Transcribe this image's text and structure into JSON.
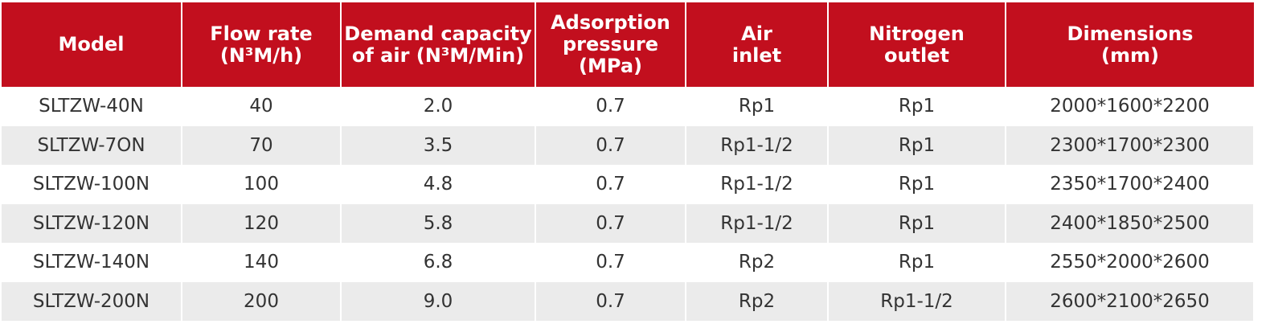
{
  "table": {
    "header": [
      [
        "Model"
      ],
      [
        "Flow rate",
        "(N³M/h)"
      ],
      [
        "Demand capacity",
        "of air (N³M/Min)"
      ],
      [
        "Adsorption",
        "pressure",
        "(MPa)"
      ],
      [
        "Air",
        "inlet"
      ],
      [
        "Nitrogen",
        "outlet"
      ],
      [
        "Dimensions",
        "(mm)"
      ]
    ],
    "rows": [
      [
        "SLTZW-40N",
        "40",
        "2.0",
        "0.7",
        "Rp1",
        "Rp1",
        "2000*1600*2200"
      ],
      [
        "SLTZW-7ON",
        "70",
        "3.5",
        "0.7",
        "Rp1-1/2",
        "Rp1",
        "2300*1700*2300"
      ],
      [
        "SLTZW-100N",
        "100",
        "4.8",
        "0.7",
        "Rp1-1/2",
        "Rp1",
        "2350*1700*2400"
      ],
      [
        "SLTZW-120N",
        "120",
        "5.8",
        "0.7",
        "Rp1-1/2",
        "Rp1",
        "2400*1850*2500"
      ],
      [
        "SLTZW-140N",
        "140",
        "6.8",
        "0.7",
        "Rp2",
        "Rp1",
        "2550*2000*2600"
      ],
      [
        "SLTZW-200N",
        "200",
        "9.0",
        "0.7",
        "Rp2",
        "Rp1-1/2",
        "2600*2100*2650"
      ]
    ]
  }
}
